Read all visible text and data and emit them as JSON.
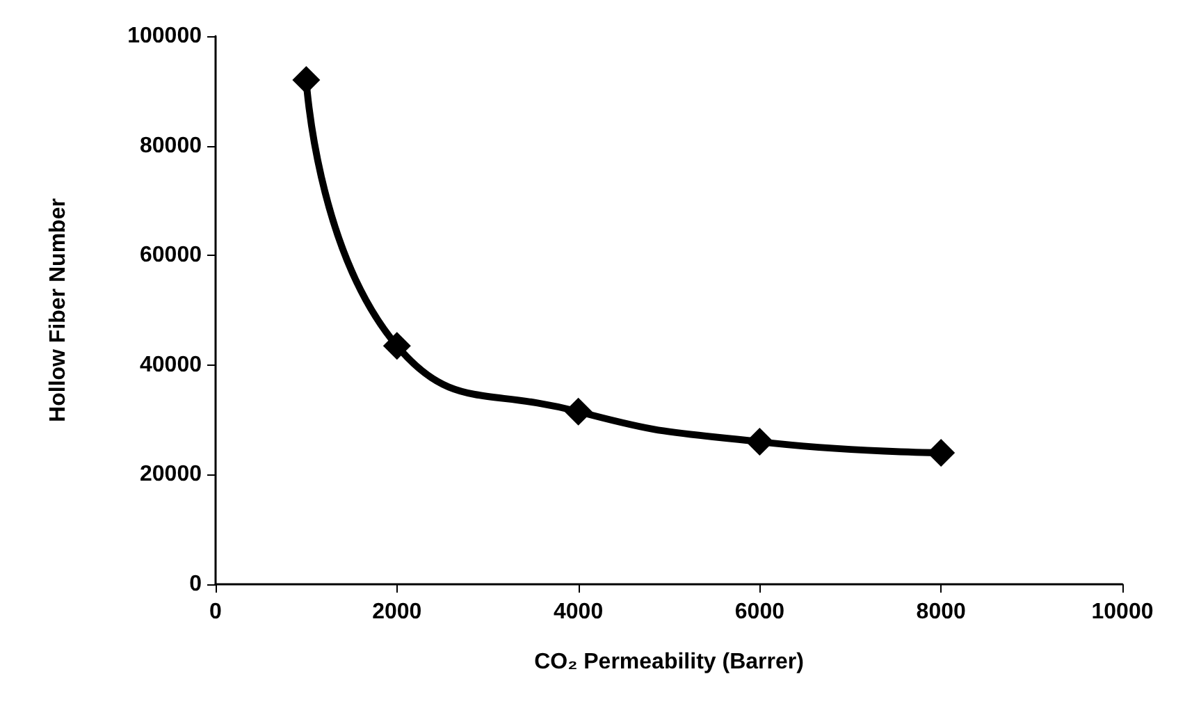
{
  "chart_data": {
    "type": "line",
    "xlabel": "CO₂ Permeability (Barrer)",
    "ylabel": "Hollow Fiber Number",
    "x": [
      1000,
      2000,
      4000,
      6000,
      8000
    ],
    "series": [
      {
        "color": "#000000",
        "values": [
          92000,
          43500,
          31500,
          26000,
          24000
        ]
      }
    ],
    "xlim": [
      0,
      10000
    ],
    "xticks": [
      0,
      2000,
      4000,
      6000,
      8000,
      10000
    ],
    "ylim": [
      0,
      100000
    ],
    "yticks": [
      0,
      20000,
      40000,
      60000,
      80000,
      100000
    ],
    "grid": false,
    "marker": "diamond",
    "line_style": "solid"
  }
}
